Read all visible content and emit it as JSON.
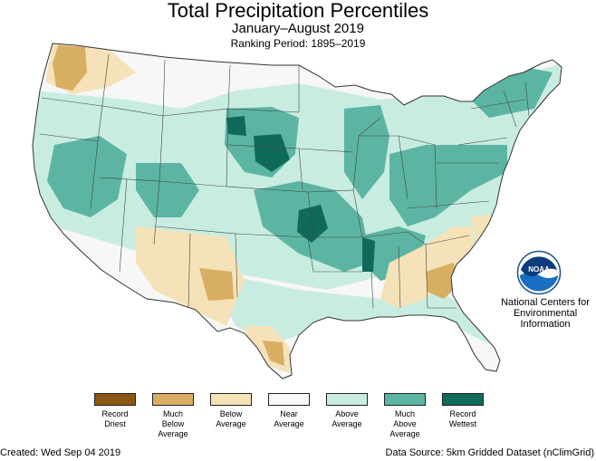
{
  "header": {
    "title": "Total Precipitation Percentiles",
    "subtitle": "January–August 2019",
    "ranking_period": "Ranking Period: 1895–2019"
  },
  "logo": {
    "name": "NOAA",
    "org_lines": [
      "National Centers for",
      "Environmental",
      "Information"
    ]
  },
  "legend": {
    "items": [
      {
        "label": "Record\nDriest",
        "color": "#8c5714"
      },
      {
        "label": "Much\nBelow\nAverage",
        "color": "#d8ae62"
      },
      {
        "label": "Below\nAverage",
        "color": "#f5e2b8"
      },
      {
        "label": "Near\nAverage",
        "color": "#f7f7f7"
      },
      {
        "label": "Above\nAverage",
        "color": "#c9ece1"
      },
      {
        "label": "Much\nAbove\nAverage",
        "color": "#5cb5a3"
      },
      {
        "label": "Record\nWettest",
        "color": "#0f6a5a"
      }
    ]
  },
  "footer": {
    "created": "Created: Wed Sep 04 2019",
    "source": "Data Source: 5km Gridded Dataset (nClimGrid)"
  },
  "colors": {
    "record_driest": "#8c5714",
    "much_below": "#d8ae62",
    "below": "#f5e2b8",
    "near": "#f7f7f7",
    "above": "#c9ece1",
    "much_above": "#5cb5a3",
    "record_wettest": "#0f6a5a",
    "boundary": "#333333",
    "noaa_blue": "#1a6fc2"
  }
}
